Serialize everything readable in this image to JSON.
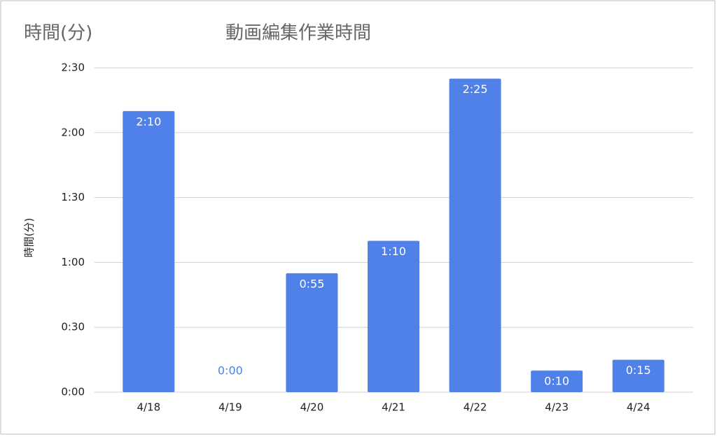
{
  "chart_data": {
    "type": "bar",
    "corner_label": "時間(分)",
    "title": "動画編集作業時間",
    "y_label": "時間(分)",
    "categories": [
      "4/18",
      "4/19",
      "4/20",
      "4/21",
      "4/22",
      "4/23",
      "4/24"
    ],
    "values": [
      130,
      0,
      55,
      70,
      145,
      10,
      15
    ],
    "value_labels": [
      "2:10",
      "0:00",
      "0:55",
      "1:10",
      "2:25",
      "0:10",
      "0:15"
    ],
    "color": "#4f81e8",
    "ylim": [
      0,
      150
    ],
    "yticks": [
      {
        "value": 0,
        "label": "0:00"
      },
      {
        "value": 30,
        "label": "0:30"
      },
      {
        "value": 60,
        "label": "1:00"
      },
      {
        "value": 90,
        "label": "1:30"
      },
      {
        "value": 120,
        "label": "2:00"
      },
      {
        "value": 150,
        "label": "2:30"
      }
    ],
    "grid": true
  }
}
